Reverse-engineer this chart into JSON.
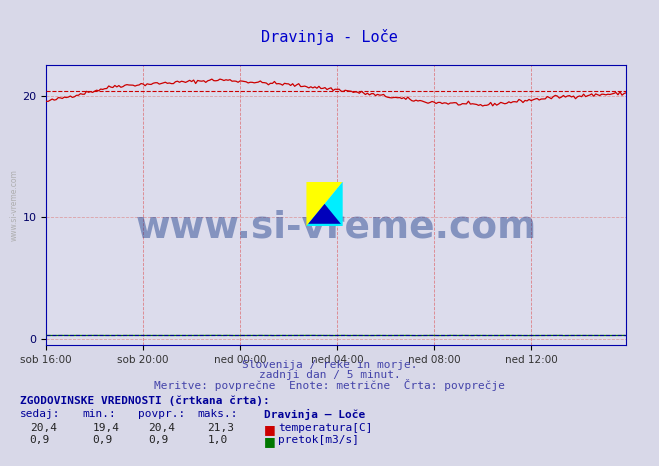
{
  "title": "Dravinja - Loče",
  "title_color": "#0000cc",
  "bg_color": "#d8d8e8",
  "plot_bg_color": "#dcdcec",
  "x_tick_labels": [
    "sob 16:00",
    "sob 20:00",
    "ned 00:00",
    "ned 04:00",
    "ned 08:00",
    "ned 12:00"
  ],
  "y_ticks": [
    0,
    10,
    20
  ],
  "ylim": [
    -0.5,
    22.5
  ],
  "xlim": [
    0,
    287
  ],
  "vgrid_color": "#dd4444",
  "hgrid_color": "#dd8888",
  "temp_color": "#cc0000",
  "flow_color": "#007700",
  "avg_temp_color": "#cc0000",
  "avg_flow_color": "#000099",
  "watermark_text": "www.si-vreme.com",
  "watermark_color": "#1a3a8a",
  "watermark_alpha": 0.45,
  "subtitle1": "Slovenija / reke in morje.",
  "subtitle2": "zadnji dan / 5 minut.",
  "subtitle3": "Meritve: povprečne  Enote: metrične  Črta: povprečje",
  "subtitle_color": "#4444aa",
  "table_header": "ZGODOVINSKE VREDNOSTI (črtkana črta):",
  "col_headers": [
    "sedaj:",
    "min.:",
    "povpr.:",
    "maks.:"
  ],
  "temp_row": [
    "20,4",
    "19,4",
    "20,4",
    "21,3"
  ],
  "flow_row": [
    "0,9",
    "0,9",
    "0,9",
    "1,0"
  ],
  "station_label": "Dravinja – Loče",
  "temp_label": "temperatura[C]",
  "flow_label": "pretok[m3/s]",
  "table_header_color": "#000099",
  "table_data_color": "#000099",
  "num_points": 288,
  "temp_avg": 20.4,
  "flow_avg": 0.9,
  "flow_display_scale": 0.3,
  "spine_color": "#0000aa",
  "tick_color": "#000066",
  "xlabel_color": "#333333"
}
